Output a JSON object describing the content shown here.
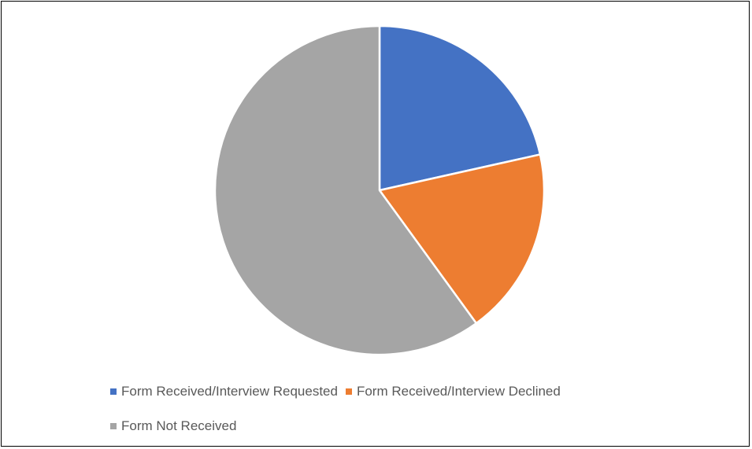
{
  "chart_data": {
    "type": "pie",
    "title": "",
    "categories": [
      "Form Received/Interview Requested",
      "Form Received/Interview Declined",
      "Form Not Received"
    ],
    "values": [
      21.5,
      18.5,
      60.0
    ],
    "unit": "percent (estimated share)",
    "colors": [
      "#4472C4",
      "#ED7D31",
      "#A5A5A5"
    ],
    "legend_position": "bottom"
  }
}
